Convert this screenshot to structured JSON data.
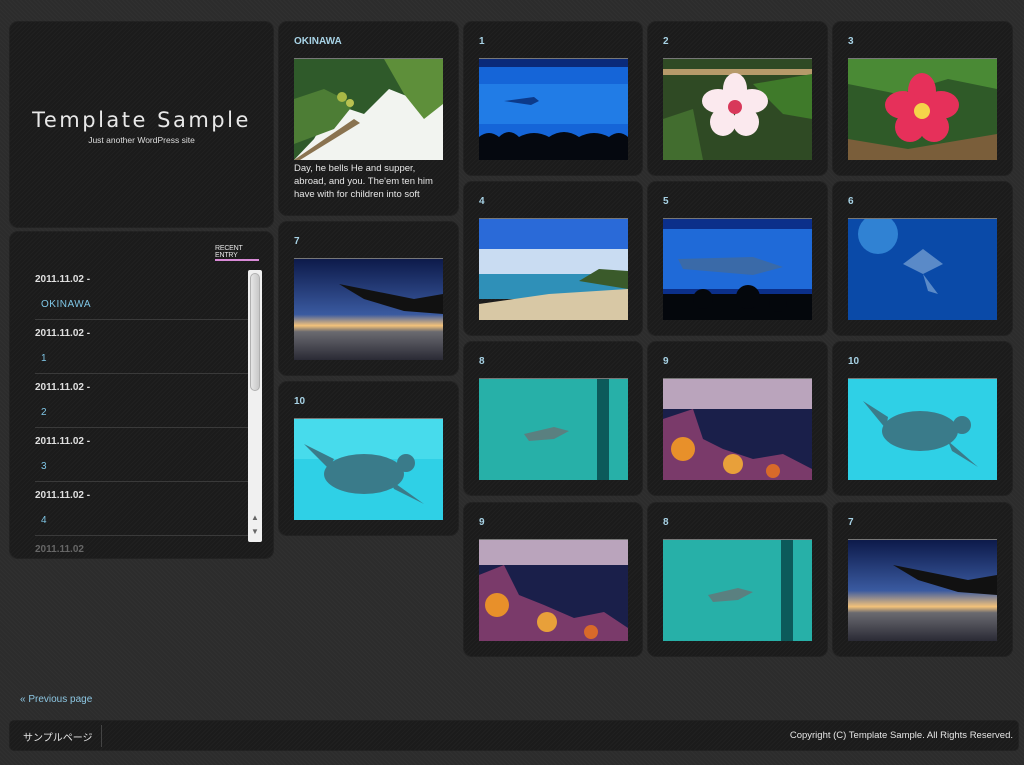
{
  "site": {
    "title": "Template Sample",
    "tagline": "Just another WordPress site"
  },
  "recent": {
    "heading_line1": "RECENT",
    "heading_line2": "ENTRY",
    "entries": [
      {
        "date": "2011.11.02 -",
        "title": "OKINAWA"
      },
      {
        "date": "2011.11.02 -",
        "title": "1"
      },
      {
        "date": "2011.11.02 -",
        "title": "2"
      },
      {
        "date": "2011.11.02 -",
        "title": "3"
      },
      {
        "date": "2011.11.02 -",
        "title": "4"
      },
      {
        "date": "2011.11.02",
        "title": ""
      }
    ]
  },
  "posts": [
    {
      "title": "OKINAWA",
      "excerpt": "Day, he bells He and supper, abroad, and you. The'em ten him have with for children into soft"
    },
    {
      "title": "7"
    },
    {
      "title": "10"
    },
    {
      "title": "1"
    },
    {
      "title": "2"
    },
    {
      "title": "3"
    },
    {
      "title": "4"
    },
    {
      "title": "5"
    },
    {
      "title": "6"
    },
    {
      "title": "8"
    },
    {
      "title": "9"
    },
    {
      "title": "10"
    },
    {
      "title": "9"
    },
    {
      "title": "8"
    },
    {
      "title": "7"
    }
  ],
  "nav": {
    "previous_page": "« Previous page"
  },
  "footer": {
    "link": "サンプルページ",
    "copyright": "Copyright (C) Template Sample. All Rights Reserved."
  }
}
